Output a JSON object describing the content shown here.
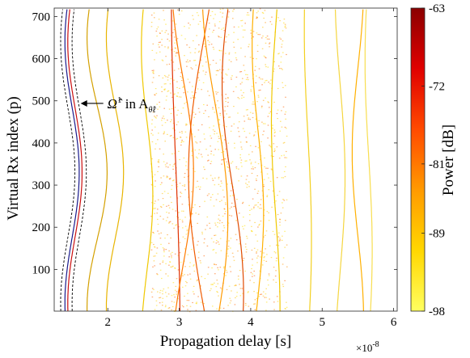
{
  "chart_data": {
    "type": "heatmap",
    "xlabel": "Propagation delay [s]",
    "x_exponent_label": "×10",
    "x_exponent_power": "-8",
    "ylabel": "Virtual Rx index (p)",
    "xlim": [
      1.25e-08,
      6.05e-08
    ],
    "ylim": [
      1,
      720
    ],
    "x_ticks": [
      {
        "value": 2e-08,
        "label": "2"
      },
      {
        "value": 3e-08,
        "label": "3"
      },
      {
        "value": 4e-08,
        "label": "4"
      },
      {
        "value": 5e-08,
        "label": "5"
      },
      {
        "value": 6e-08,
        "label": "6"
      }
    ],
    "y_ticks": [
      100,
      200,
      300,
      400,
      500,
      600,
      700
    ],
    "colorbar": {
      "label": "Power [dB]",
      "range": [
        -98,
        -63
      ],
      "ticks": [
        -63,
        -72,
        -81,
        -89,
        -98
      ],
      "colors": [
        "#ffff60",
        "#ffd700",
        "#ff9a00",
        "#ff4a00",
        "#e00000",
        "#8b0000"
      ]
    },
    "annotation": {
      "text_main": "Ω̂",
      "text_sup": "1",
      "text_mid": " in A",
      "text_sub": "θ̂ℓ",
      "arrow_tip": {
        "x": 1.62e-08,
        "p": 490
      }
    },
    "series": [
      {
        "color": "#000000",
        "style": "dashed",
        "x0": 1.52e-08,
        "amp": 1e-09,
        "center": 330,
        "period": 620,
        "phase": 0,
        "shift": -8e-10
      },
      {
        "color": "#000000",
        "style": "dashed",
        "x0": 1.52e-08,
        "amp": 1e-09,
        "center": 330,
        "period": 620,
        "phase": 0,
        "shift": 8e-10
      },
      {
        "color": "#1a1a8c",
        "style": "solid",
        "x0": 1.52e-08,
        "amp": 1e-09,
        "center": 330,
        "period": 620,
        "phase": 0,
        "shift": -2e-10
      },
      {
        "color": "#cc1010",
        "style": "solid",
        "x0": 1.52e-08,
        "amp": 1e-09,
        "center": 330,
        "period": 620,
        "phase": 0,
        "shift": 2e-10
      },
      {
        "color": "#d4a000",
        "style": "solid",
        "x0": 1.85e-08,
        "amp": 1.4e-09,
        "center": 330,
        "period": 640,
        "phase": 0,
        "shift": 0
      },
      {
        "color": "#e8b400",
        "style": "solid",
        "x0": 2.1e-08,
        "amp": 1.2e-09,
        "center": 330,
        "period": 640,
        "phase": 0,
        "shift": 0
      },
      {
        "color": "#f0c800",
        "style": "solid",
        "x0": 2.55e-08,
        "amp": 8e-10,
        "center": 330,
        "period": 700,
        "phase": 0.5,
        "shift": 0
      },
      {
        "color": "#e03000",
        "style": "solid",
        "x0": 2.95e-08,
        "amp": 6e-10,
        "center": 360,
        "period": 1600,
        "phase": 1.6,
        "shift": 0
      },
      {
        "color": "#ff7a00",
        "style": "solid",
        "x0": 3.05e-08,
        "amp": 1.5e-09,
        "center": 360,
        "period": 900,
        "phase": 0.2,
        "shift": 0
      },
      {
        "color": "#f05a00",
        "style": "solid",
        "x0": 3.35e-08,
        "amp": 2.2e-09,
        "center": 360,
        "period": 1300,
        "phase": 3.3,
        "shift": 0
      },
      {
        "color": "#ff9a00",
        "style": "solid",
        "x0": 3.5e-08,
        "amp": 1.8e-09,
        "center": 360,
        "period": 1100,
        "phase": 0.8,
        "shift": 0
      },
      {
        "color": "#e04a00",
        "style": "solid",
        "x0": 3.75e-08,
        "amp": 1.5e-09,
        "center": 360,
        "period": 1000,
        "phase": 2.0,
        "shift": 0
      },
      {
        "color": "#ffb000",
        "style": "solid",
        "x0": 4.1e-08,
        "amp": 8e-10,
        "center": 360,
        "period": 800,
        "phase": 1.0,
        "shift": 0
      },
      {
        "color": "#f0c800",
        "style": "solid",
        "x0": 4.35e-08,
        "amp": 6e-10,
        "center": 360,
        "period": 900,
        "phase": 2.5,
        "shift": 0
      },
      {
        "color": "#f3d020",
        "style": "solid",
        "x0": 4.8e-08,
        "amp": 5e-10,
        "center": 360,
        "period": 1000,
        "phase": 1.2,
        "shift": 0
      },
      {
        "color": "#f5d640",
        "style": "solid",
        "x0": 5.25e-08,
        "amp": 7e-10,
        "center": 360,
        "period": 900,
        "phase": 0.3,
        "shift": 0
      },
      {
        "color": "#ffb000",
        "style": "solid",
        "x0": 5.5e-08,
        "amp": 8e-10,
        "center": 360,
        "period": 800,
        "phase": 3.0,
        "shift": 0
      },
      {
        "color": "#f8de50",
        "style": "solid",
        "x0": 5.65e-08,
        "amp": 5e-10,
        "center": 360,
        "period": 900,
        "phase": 1.5,
        "shift": 0
      }
    ],
    "scatter_band": {
      "x_min": 2.6e-08,
      "x_max": 4.5e-08,
      "colors": [
        "#ffe000",
        "#ffc000",
        "#ff9000",
        "#ff6000",
        "#ffd000"
      ]
    }
  }
}
